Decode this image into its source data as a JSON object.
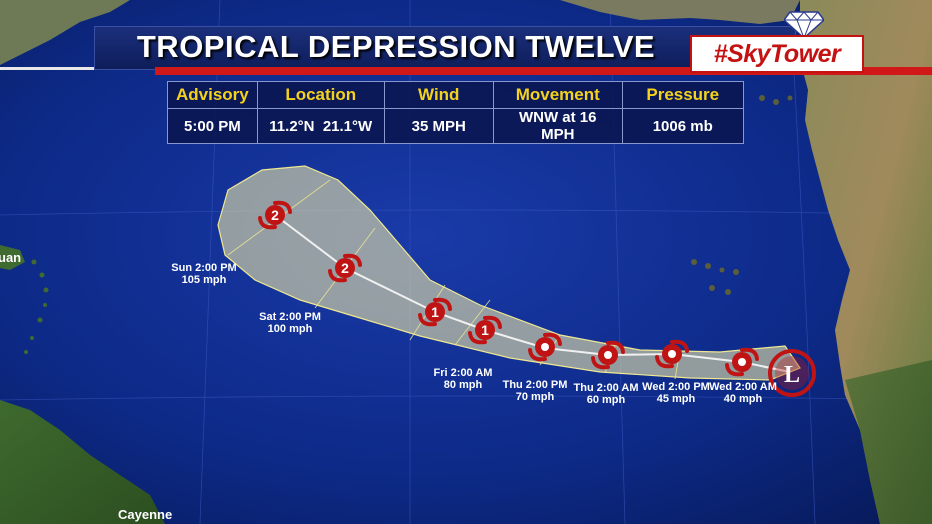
{
  "title": "TROPICAL DEPRESSION TWELVE",
  "brand": "#SkyTower",
  "info_table": {
    "headers": [
      "Advisory",
      "Location",
      "Wind",
      "Movement",
      "Pressure"
    ],
    "values": [
      "5:00 PM",
      "11.2°N  21.1°W",
      "35 MPH",
      "WNW at 16 MPH",
      "1006 mb"
    ]
  },
  "forecast_points": [
    {
      "time": "Wed 2:00 AM",
      "wind": "40 mph",
      "category": ""
    },
    {
      "time": "Wed 2:00 PM",
      "wind": "45 mph",
      "category": ""
    },
    {
      "time": "Thu 2:00 AM",
      "wind": "60 mph",
      "category": ""
    },
    {
      "time": "Thu 2:00 PM",
      "wind": "70 mph",
      "category": ""
    },
    {
      "time": "",
      "wind": "",
      "category": "1"
    },
    {
      "time": "Fri 2:00 AM",
      "wind": "80 mph",
      "category": "1"
    },
    {
      "time": "Sat 2:00 PM",
      "wind": "100 mph",
      "category": "2"
    },
    {
      "time": "Sun 2:00 PM",
      "wind": "105 mph",
      "category": "2"
    }
  ],
  "current_position_symbol": "L",
  "places": [
    "Cayenne"
  ],
  "partial_place": "uan",
  "colors": {
    "ocean": "#0b2a86",
    "cone": "#d8d8a0",
    "storm_symbol": "#c01414",
    "header_text": "#f4d21c",
    "banner_red": "#d01818"
  }
}
